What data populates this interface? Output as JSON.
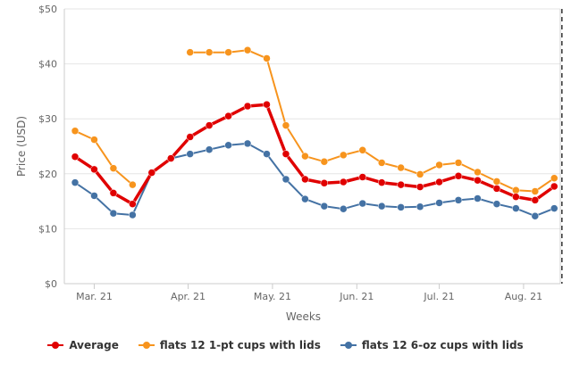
{
  "chart_data": {
    "type": "line",
    "title": "",
    "xlabel": "Weeks",
    "ylabel": "Price (USD)",
    "ylim": [
      0,
      50
    ],
    "yticks": [
      "$0",
      "$10",
      "$20",
      "$30",
      "$40",
      "$50"
    ],
    "ytick_values": [
      0,
      10,
      20,
      30,
      40,
      50
    ],
    "xticks": [
      {
        "label": "Mar. 21",
        "week": 1
      },
      {
        "label": "Apr. 21",
        "week": 5.9
      },
      {
        "label": "May. 21",
        "week": 10.3
      },
      {
        "label": "Jun. 21",
        "week": 14.7
      },
      {
        "label": "Jul. 21",
        "week": 19
      },
      {
        "label": "Aug. 21",
        "week": 23.4
      }
    ],
    "x": [
      0,
      1,
      2,
      3,
      4,
      5,
      6,
      7,
      8,
      9,
      10,
      11,
      12,
      13,
      14,
      15,
      16,
      17,
      18,
      19,
      20,
      21,
      22,
      23,
      24,
      25,
      26
    ],
    "series": [
      {
        "name": "Average",
        "color": "#e00000",
        "values": [
          23.1,
          20.8,
          16.5,
          14.5,
          20.2,
          22.8,
          26.7,
          28.8,
          30.5,
          32.3,
          32.6,
          23.6,
          19.0,
          18.3,
          18.5,
          19.4,
          18.4,
          18.0,
          17.6,
          18.5,
          19.6,
          18.8,
          17.3,
          15.8,
          15.2,
          17.7,
          null
        ]
      },
      {
        "name": "flats 12 1-pt cups with lids",
        "color": "#f7941d",
        "values": [
          27.8,
          26.2,
          21.0,
          18.0,
          null,
          null,
          42.1,
          42.1,
          42.1,
          42.5,
          41.0,
          28.8,
          23.2,
          22.2,
          23.4,
          24.3,
          22.0,
          21.1,
          19.9,
          21.6,
          22.0,
          20.3,
          18.6,
          17.0,
          16.8,
          19.2,
          null
        ]
      },
      {
        "name": "flats 12 6-oz cups with lids",
        "color": "#4472a4",
        "values": [
          18.4,
          16.0,
          12.8,
          12.5,
          20.2,
          22.8,
          23.6,
          24.4,
          25.2,
          25.5,
          23.6,
          19.0,
          15.4,
          14.1,
          13.6,
          14.6,
          14.1,
          13.9,
          14.0,
          14.7,
          15.2,
          15.5,
          14.5,
          13.7,
          12.3,
          13.7,
          null
        ]
      }
    ],
    "marker_line_week": 25.4,
    "grid": true
  }
}
